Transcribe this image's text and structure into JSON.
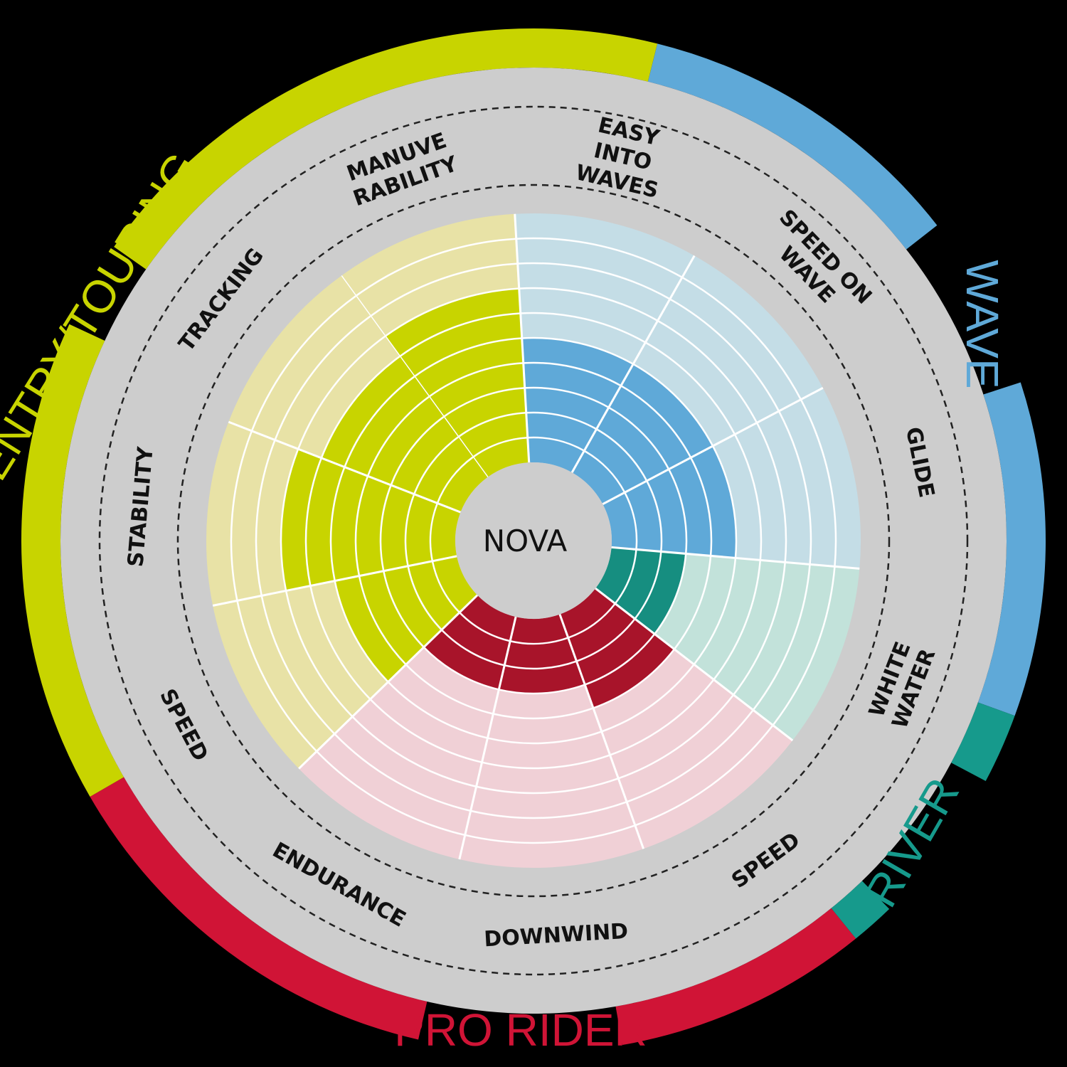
{
  "chart_data": {
    "type": "radial-bar",
    "center_label": "NOVA",
    "max_level": 10,
    "categories": [
      {
        "name": "ENTRY/TOURING",
        "color": "#c8d400"
      },
      {
        "name": "WAVE",
        "color": "#5fa9d8"
      },
      {
        "name": "RIVER",
        "color": "#169a8c"
      },
      {
        "name": "PRO RIDER",
        "color": "#d01436"
      }
    ],
    "axes": [
      {
        "label": [
          "MANUVE",
          "RABILITY"
        ],
        "group": "ENTRY/TOURING",
        "value": 7
      },
      {
        "label": [
          "EASY",
          "INTO",
          "WAVES"
        ],
        "group": "WAVE",
        "value": 5
      },
      {
        "label": [
          "SPEED ON",
          "WAVE"
        ],
        "group": "WAVE",
        "value": 5
      },
      {
        "label": [
          "GLIDE"
        ],
        "group": "WAVE",
        "value": 5
      },
      {
        "label": [
          "WHITE",
          "WATER"
        ],
        "group": "RIVER",
        "value": 3
      },
      {
        "label": [
          "SPEED"
        ],
        "group": "PRO RIDER",
        "value": 4
      },
      {
        "label": [
          "DOWNWIND"
        ],
        "group": "PRO RIDER",
        "value": 3
      },
      {
        "label": [
          "ENDURANCE"
        ],
        "group": "PRO RIDER",
        "value": 3
      },
      {
        "label": [
          "SPEED"
        ],
        "group": "ENTRY/TOURING",
        "value": 5
      },
      {
        "label": [
          "STABILITY"
        ],
        "group": "ENTRY/TOURING",
        "value": 7
      },
      {
        "label": [
          "TRACKING"
        ],
        "group": "ENTRY/TOURING",
        "value": 6
      }
    ]
  }
}
